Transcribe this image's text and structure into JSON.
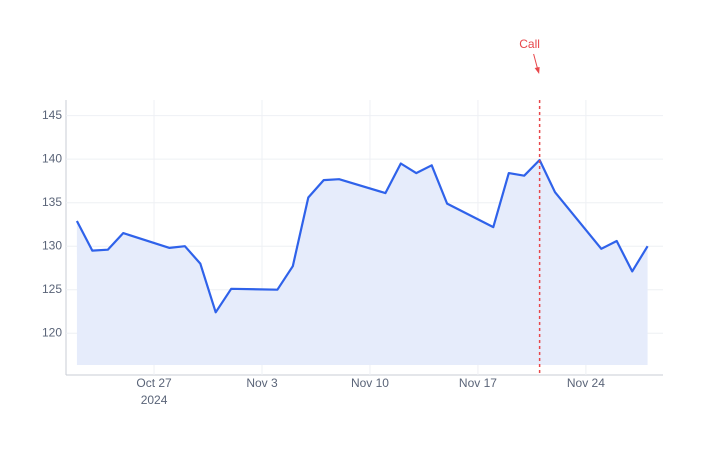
{
  "chart_data": {
    "type": "line",
    "x": [
      "2024-10-22",
      "2024-10-23",
      "2024-10-24",
      "2024-10-25",
      "2024-10-28",
      "2024-10-29",
      "2024-10-30",
      "2024-10-31",
      "2024-11-01",
      "2024-11-04",
      "2024-11-05",
      "2024-11-06",
      "2024-11-07",
      "2024-11-08",
      "2024-11-11",
      "2024-11-12",
      "2024-11-13",
      "2024-11-14",
      "2024-11-15",
      "2024-11-18",
      "2024-11-19",
      "2024-11-20",
      "2024-11-21",
      "2024-11-22",
      "2024-11-25",
      "2024-11-26",
      "2024-11-27",
      "2024-11-28"
    ],
    "series": [
      {
        "color": "#2f62ea",
        "fill": "#e6ecfb",
        "values": [
          132.9,
          129.5,
          129.6,
          131.5,
          129.8,
          130.0,
          128.0,
          122.4,
          125.1,
          125.0,
          127.7,
          135.6,
          137.6,
          137.7,
          136.1,
          139.5,
          138.4,
          139.3,
          134.9,
          132.2,
          138.4,
          138.1,
          139.9,
          136.2,
          129.7,
          130.6,
          127.1,
          130.0
        ]
      }
    ],
    "xlim": [
      "2024-10-21T07:00:00",
      "2024-11-29T00:00:00"
    ],
    "xticks": [
      {
        "value": "2024-10-27",
        "label": "Oct 27\n2024"
      },
      {
        "value": "2024-11-03",
        "label": "Nov 3"
      },
      {
        "value": "2024-11-10",
        "label": "Nov 10"
      },
      {
        "value": "2024-11-17",
        "label": "Nov 17"
      },
      {
        "value": "2024-11-24",
        "label": "Nov 24"
      }
    ],
    "ylim": [
      115.2,
      146.8
    ],
    "yticks": [
      120,
      125,
      130,
      135,
      140,
      145
    ],
    "grid": true,
    "annotations": [
      {
        "x": "2024-11-21",
        "text": "Call",
        "color": "#e8474b"
      }
    ]
  }
}
